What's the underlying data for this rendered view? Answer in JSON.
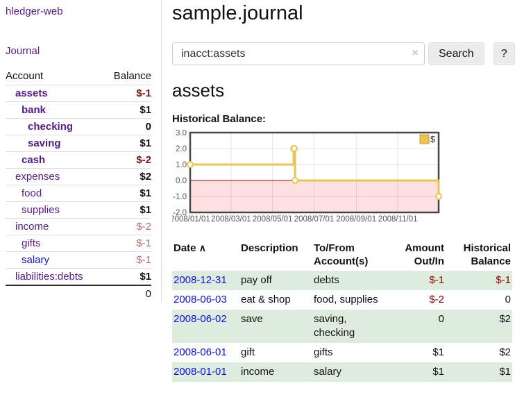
{
  "app": {
    "brand": "hledger-web",
    "nav_journal": "Journal"
  },
  "sidebar": {
    "header": {
      "account": "Account",
      "balance": "Balance"
    },
    "accounts": [
      {
        "name": "assets",
        "depth": 1,
        "balance": "$-1",
        "bold": true,
        "balance_style": "neg-dark",
        "link_style": "visited"
      },
      {
        "name": "bank",
        "depth": 2,
        "balance": "$1",
        "bold": true,
        "balance_style": "pos",
        "link_style": "visited"
      },
      {
        "name": "checking",
        "depth": 3,
        "balance": "0",
        "bold": true,
        "balance_style": "pos",
        "link_style": "visited"
      },
      {
        "name": "saving",
        "depth": 3,
        "balance": "$1",
        "bold": true,
        "balance_style": "pos",
        "link_style": "visited"
      },
      {
        "name": "cash",
        "depth": 2,
        "balance": "$-2",
        "bold": true,
        "balance_style": "neg-dark",
        "link_style": "visited"
      },
      {
        "name": "expenses",
        "depth": 1,
        "balance": "$2",
        "bold": false,
        "balance_style": "pos",
        "link_style": "visited"
      },
      {
        "name": "food",
        "depth": 2,
        "balance": "$1",
        "bold": false,
        "balance_style": "pos",
        "link_style": "visited"
      },
      {
        "name": "supplies",
        "depth": 2,
        "balance": "$1",
        "bold": false,
        "balance_style": "pos",
        "link_style": "visited"
      },
      {
        "name": "income",
        "depth": 1,
        "balance": "$-2",
        "bold": false,
        "balance_style": "neg-light",
        "link_style": "visited"
      },
      {
        "name": "gifts",
        "depth": 2,
        "balance": "$-1",
        "bold": false,
        "balance_style": "neg-light",
        "link_style": "visited"
      },
      {
        "name": "salary",
        "depth": 2,
        "balance": "$-1",
        "bold": false,
        "balance_style": "neg-light",
        "link_style": "new"
      },
      {
        "name": "liabilities:debts",
        "depth": 1,
        "balance": "$1",
        "bold": false,
        "balance_style": "pos",
        "link_style": "visited"
      }
    ],
    "total": "0"
  },
  "header": {
    "title": "sample.journal"
  },
  "search": {
    "value": "inacct:assets",
    "clear_label": "×",
    "button": "Search",
    "help": "?"
  },
  "account_page": {
    "heading": "assets",
    "chart_label": "Historical Balance:"
  },
  "chart_data": {
    "type": "line",
    "title": "Historical Balance",
    "step": true,
    "series": [
      {
        "name": "$",
        "color": "#E9C44E",
        "points": [
          {
            "x": "2008-01-01",
            "y": 1
          },
          {
            "x": "2008-06-01",
            "y": 2
          },
          {
            "x": "2008-06-02",
            "y": 2
          },
          {
            "x": "2008-06-03",
            "y": 0
          },
          {
            "x": "2008-12-31",
            "y": -1
          }
        ]
      }
    ],
    "x_domain": [
      "2008-01-01",
      "2008-12-31"
    ],
    "x_ticks": [
      "2008/01/01",
      "2008/03/01",
      "2008/05/01",
      "2008/07/01",
      "2008/09/01",
      "2008/11/01"
    ],
    "y_ticks": [
      "3.0",
      "2.0",
      "1.0",
      "0.0",
      "-1.0",
      "-2.0"
    ],
    "ylim": [
      -2,
      3
    ],
    "grid": true,
    "legend": {
      "label": "$",
      "position": "top-right",
      "swatch_color": "#E9C44E",
      "swatch_border": "#C8A32B"
    },
    "negative_region_color": "rgba(255,0,0,0.12)",
    "zero_line_color": "#8b0000",
    "plot_border_color": "#474747",
    "gridline_color": "#e3e3e3",
    "axis_text_color": "#545454"
  },
  "register": {
    "columns": [
      "Date",
      "Description",
      "To/From Account(s)",
      "Amount Out/In",
      "Historical Balance"
    ],
    "sort_icon": "∧",
    "rows": [
      {
        "date": "2008-12-31",
        "description": "pay off",
        "accounts": "debts",
        "amount": "$-1",
        "amount_neg": true,
        "balance": "$-1",
        "balance_neg": true,
        "shaded": true
      },
      {
        "date": "2008-06-03",
        "description": "eat & shop",
        "accounts": "food, supplies",
        "amount": "$-2",
        "amount_neg": true,
        "balance": "0",
        "balance_neg": false,
        "shaded": false
      },
      {
        "date": "2008-06-02",
        "description": "save",
        "accounts": "saving,\nchecking",
        "amount": "0",
        "amount_neg": false,
        "balance": "$2",
        "balance_neg": false,
        "shaded": true
      },
      {
        "date": "2008-06-01",
        "description": "gift",
        "accounts": "gifts",
        "amount": "$1",
        "amount_neg": false,
        "balance": "$2",
        "balance_neg": false,
        "shaded": false
      },
      {
        "date": "2008-01-01",
        "description": "income",
        "accounts": "salary",
        "amount": "$1",
        "amount_neg": false,
        "balance": "$1",
        "balance_neg": false,
        "shaded": true
      }
    ]
  }
}
